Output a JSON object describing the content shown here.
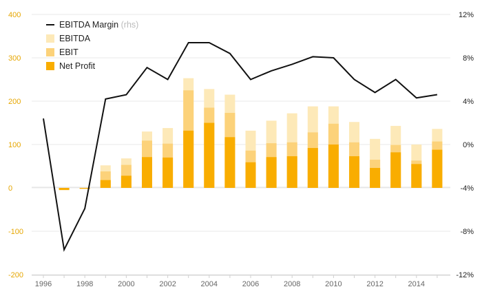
{
  "chart_data": {
    "type": "bar",
    "title": "",
    "xlabel": "",
    "ylabel": "",
    "categories": [
      "1996",
      "1997",
      "1998",
      "1999",
      "2000",
      "2001",
      "2002",
      "2003",
      "2004",
      "2005",
      "2006",
      "2007",
      "2008",
      "2009",
      "2010",
      "2011",
      "2012",
      "2013",
      "2014",
      "2015"
    ],
    "x_tick_labels": [
      "1996",
      "1998",
      "2000",
      "2002",
      "2004",
      "2006",
      "2008",
      "2010",
      "2012",
      "2014"
    ],
    "ylim": [
      -200,
      400
    ],
    "y_ticks": [
      -200,
      -100,
      0,
      100,
      200,
      300,
      400
    ],
    "y_tick_labels": [
      "-200",
      "-100",
      "0",
      "100",
      "200",
      "300",
      "400"
    ],
    "y2lim": [
      -12,
      12
    ],
    "y2_ticks": [
      -12,
      -8,
      -4,
      0,
      4,
      8,
      12
    ],
    "y2_tick_labels": [
      "-12%",
      "-8%",
      "-4%",
      "0%",
      "4%",
      "8%",
      "12%"
    ],
    "grid": true,
    "legend_position": "top-left",
    "series": [
      {
        "name": "EBITDA",
        "type": "bar",
        "axis": "left",
        "color": "#fde9b8",
        "values": [
          0,
          -3,
          -2,
          52,
          68,
          130,
          138,
          253,
          228,
          215,
          132,
          155,
          172,
          188,
          188,
          152,
          113,
          143,
          100,
          136
        ]
      },
      {
        "name": "EBIT",
        "type": "bar",
        "axis": "left",
        "color": "#fcd27a",
        "values": [
          0,
          -4,
          -2,
          38,
          53,
          109,
          102,
          225,
          185,
          173,
          86,
          103,
          105,
          128,
          148,
          105,
          65,
          99,
          63,
          107
        ]
      },
      {
        "name": "Net Profit",
        "type": "bar",
        "axis": "left",
        "color": "#f9ad00",
        "values": [
          0,
          -5,
          -2,
          18,
          28,
          71,
          70,
          132,
          150,
          117,
          59,
          71,
          73,
          92,
          100,
          73,
          46,
          82,
          55,
          88
        ]
      },
      {
        "name": "EBITDA Margin",
        "name_suffix": "(rhs)",
        "type": "line",
        "axis": "right",
        "color": "#111111",
        "values": [
          2.4,
          -9.7,
          -5.9,
          4.2,
          4.6,
          7.1,
          6.0,
          9.4,
          9.4,
          8.4,
          6.0,
          6.8,
          7.4,
          8.1,
          8.0,
          6.0,
          4.8,
          6.0,
          4.3,
          4.6
        ]
      }
    ]
  },
  "legend": {
    "items": [
      {
        "label": "EBITDA Margin",
        "suffix": "(rhs)",
        "kind": "line",
        "color": "#111111"
      },
      {
        "label": "EBITDA",
        "suffix": "",
        "kind": "box",
        "color": "#fde9b8"
      },
      {
        "label": "EBIT",
        "suffix": "",
        "kind": "box",
        "color": "#fcd27a"
      },
      {
        "label": "Net Profit",
        "suffix": "",
        "kind": "box",
        "color": "#f9ad00"
      }
    ]
  },
  "colors": {
    "left_axis_text": "#e6a600",
    "right_axis_text": "#222222",
    "x_axis_text": "#666666",
    "grid": "#e9e9e9"
  }
}
